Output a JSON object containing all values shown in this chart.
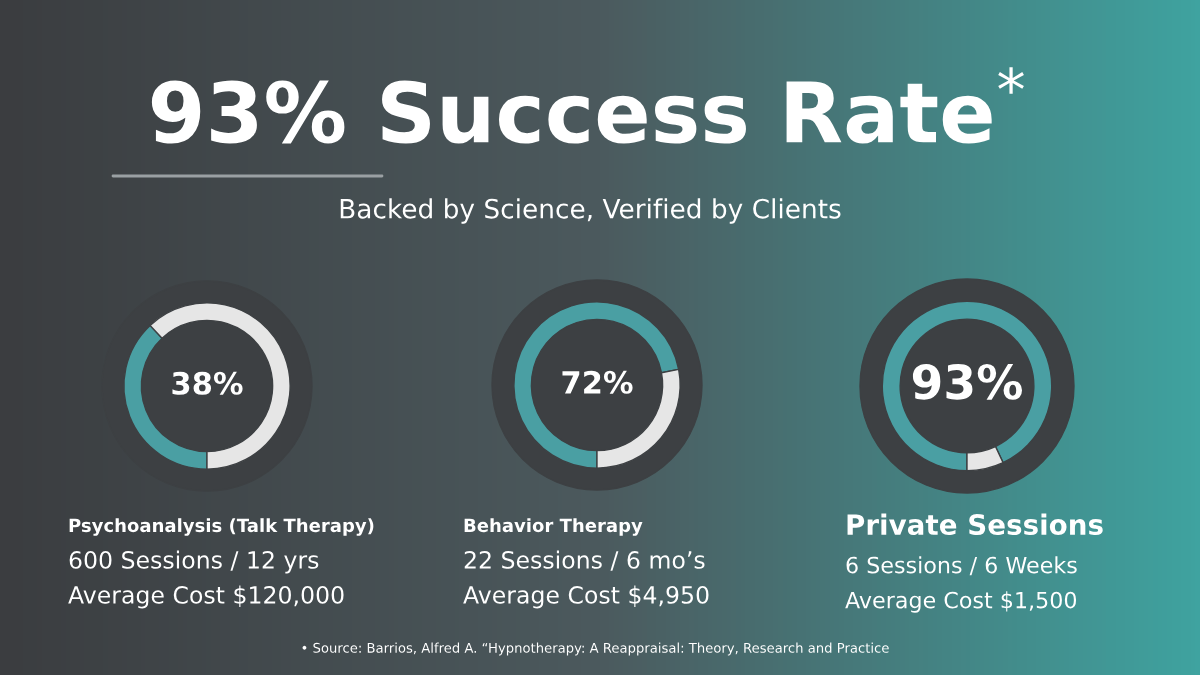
{
  "chart_data": [
    {
      "type": "other",
      "title": "93% Success Rate$^{*}$",
      "subtitle": "Backed by Science, Verified by Clients",
      "annotations": [
        "• Source: Barrios, Alfred A. “Hypnotherapy: A Reappraisal: Theory, Research and Practice"
      ]
    },
    {
      "type": "donut",
      "title": "Psychoanalysis (Talk Therapy)",
      "categories": [
        null,
        null
      ],
      "values": [
        38,
        62
      ],
      "colors": [
        "#4a9fa3",
        "#e6e6e6"
      ],
      "annotations": [
        "38%",
        "600 Sessions / 12 yrs",
        "Average Cost $120,000"
      ]
    },
    {
      "type": "donut",
      "title": "Behavior Therapy",
      "categories": [
        null,
        null
      ],
      "values": [
        72,
        28
      ],
      "colors": [
        "#4a9fa3",
        "#e6e6e6"
      ],
      "annotations": [
        "72%",
        "22 Sessions / 6 mo’s",
        "Average Cost $4,950"
      ]
    },
    {
      "type": "donut",
      "title": "Private Sessions",
      "categories": [
        null,
        null
      ],
      "values": [
        93,
        7
      ],
      "colors": [
        "#4a9fa3",
        "#e6e6e6"
      ],
      "annotations": [
        "93%",
        "6 Sessions / 6 Weeks",
        "Average Cost $1,500"
      ]
    }
  ]
}
